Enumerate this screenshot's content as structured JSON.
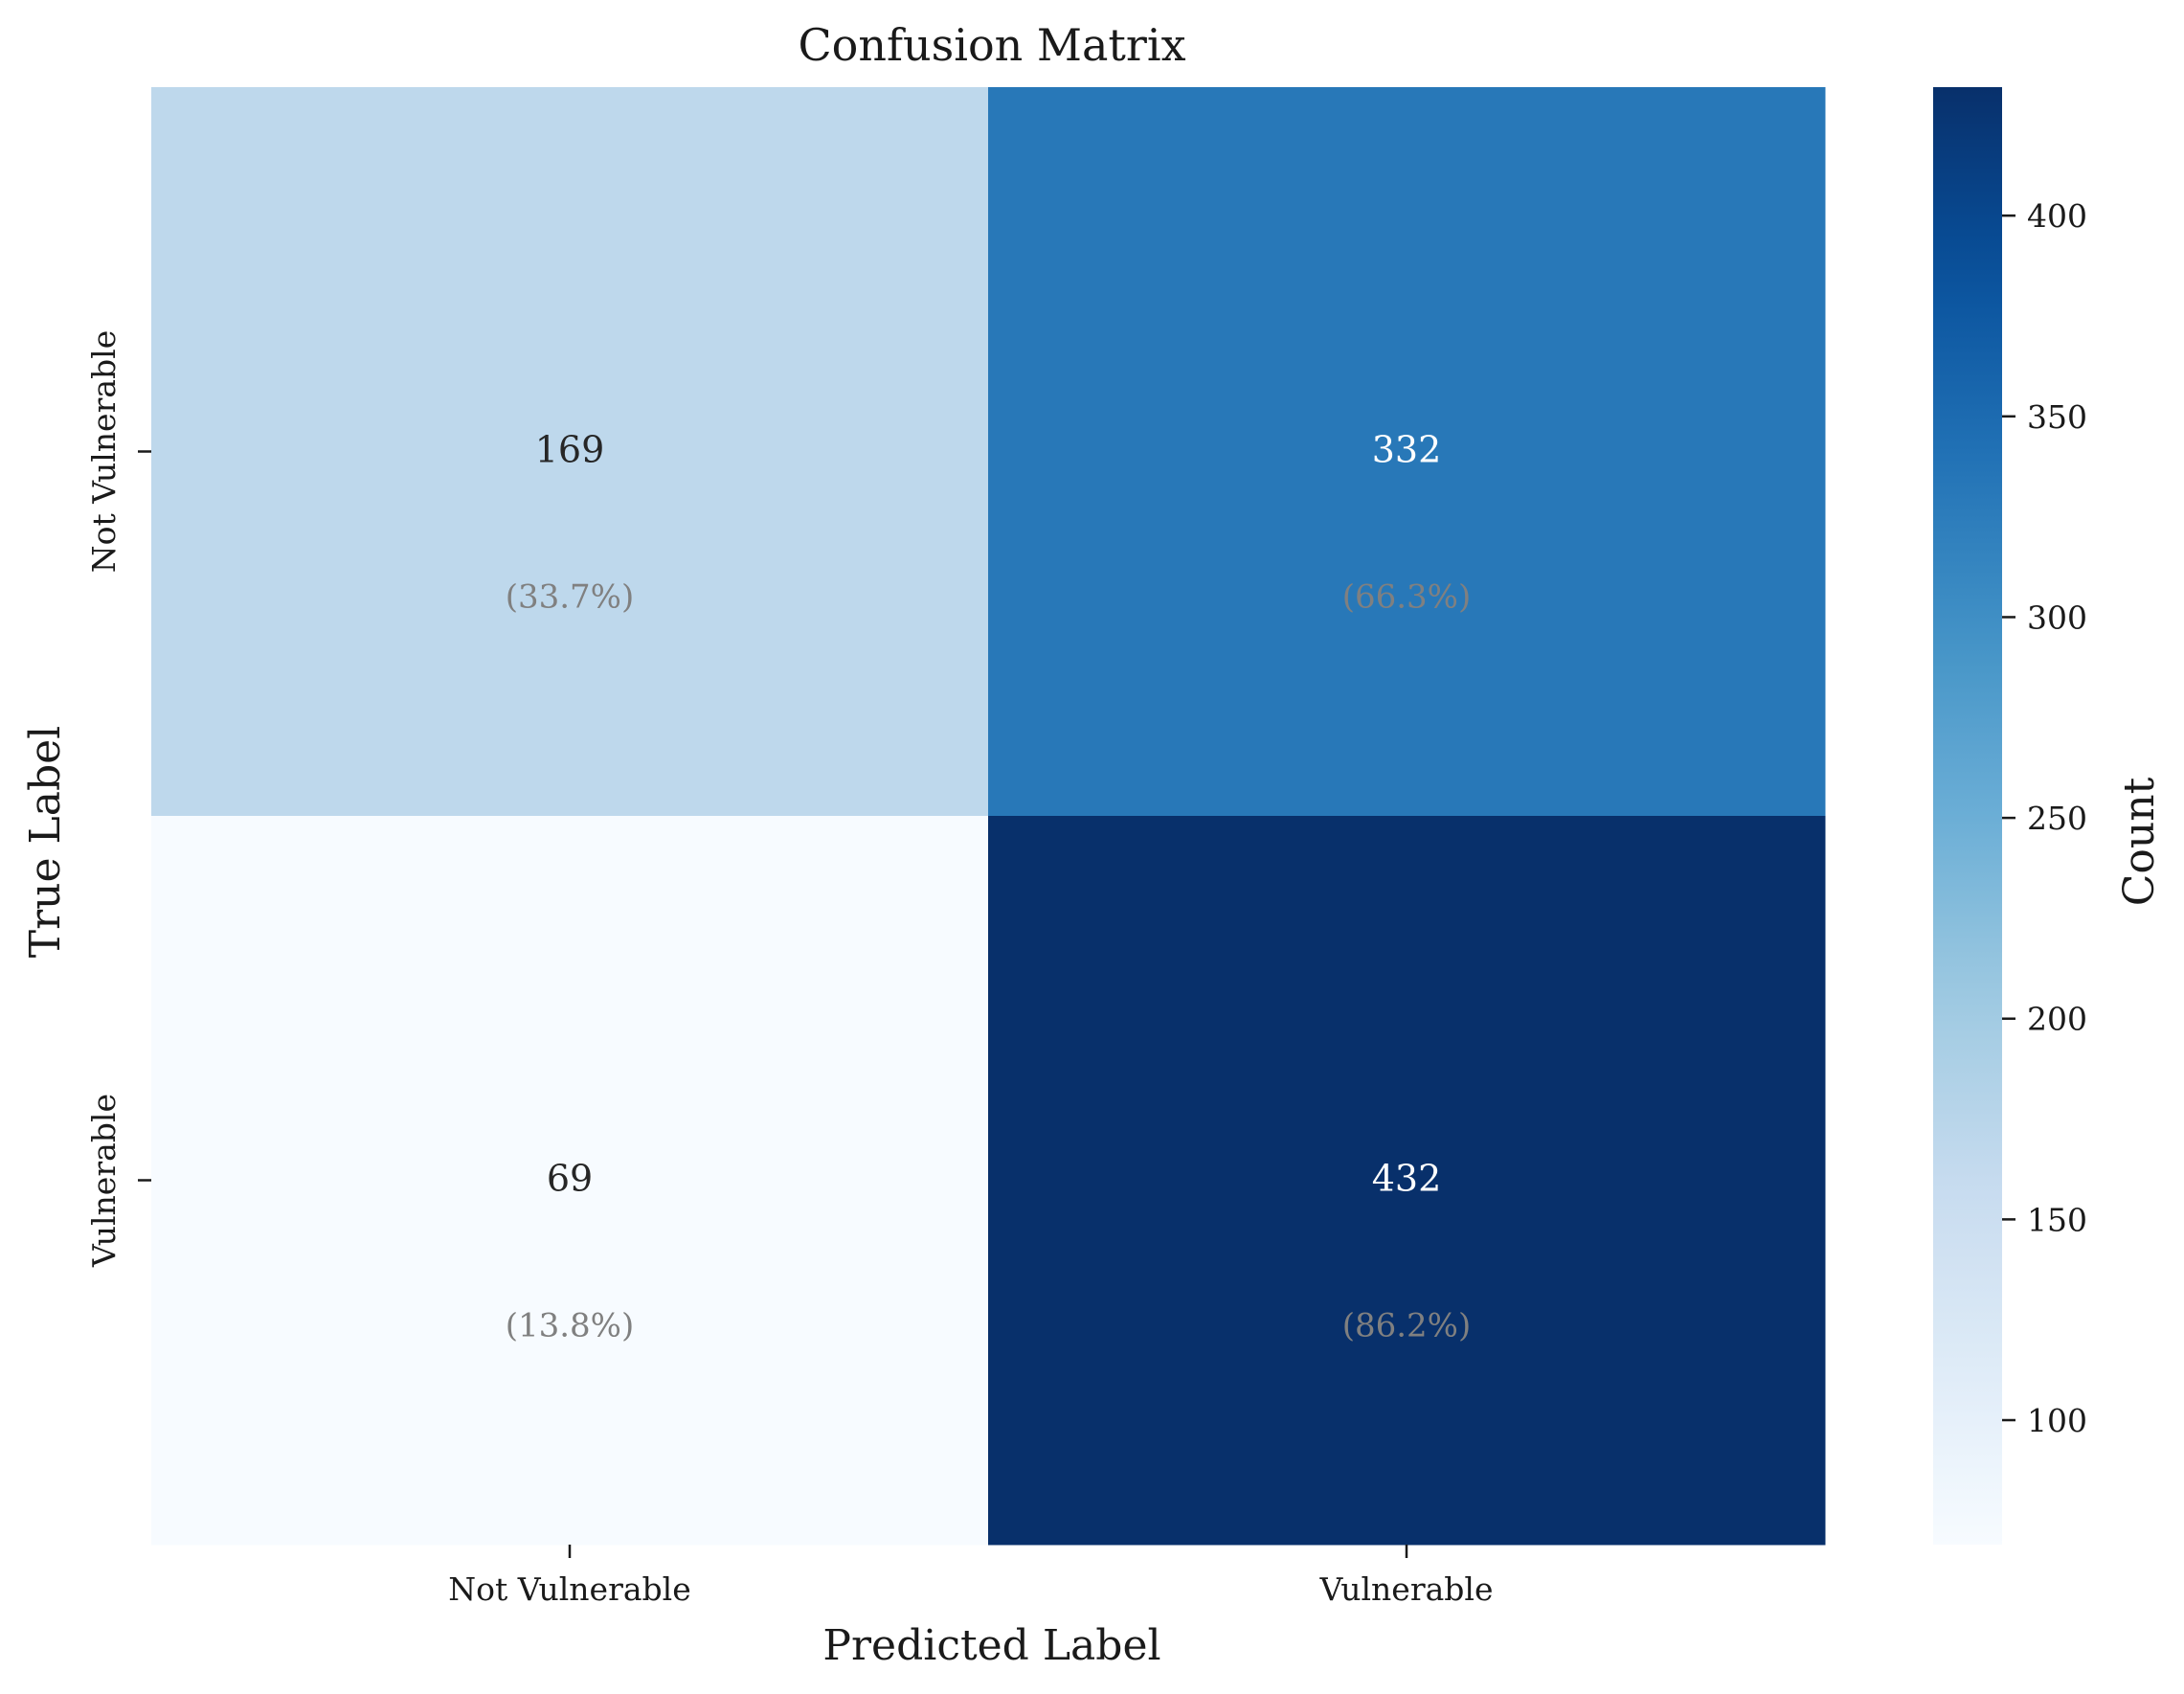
{
  "chart_data": {
    "type": "heatmap",
    "title": "Confusion Matrix",
    "xlabel": "Predicted Label",
    "ylabel": "True Label",
    "x_categories": [
      "Not Vulnerable",
      "Vulnerable"
    ],
    "y_categories": [
      "Not Vulnerable",
      "Vulnerable"
    ],
    "values": [
      [
        169,
        332
      ],
      [
        69,
        432
      ]
    ],
    "percent_labels": [
      [
        "(33.7%)",
        "(66.3%)"
      ],
      [
        "(13.8%)",
        "(86.2%)"
      ]
    ],
    "colormap": "Blues",
    "colorbar": {
      "label": "Count",
      "range": [
        69,
        432
      ],
      "ticks": [
        100,
        150,
        200,
        250,
        300,
        350,
        400
      ]
    },
    "colors": {
      "ramp": [
        "#f7fbff",
        "#deebf7",
        "#c6dbef",
        "#9ecae1",
        "#6baed6",
        "#4292c6",
        "#2171b5",
        "#08519c",
        "#08306b"
      ],
      "percent_text": "#808080",
      "dark_text": "#262626",
      "light_text": "#ffffff"
    }
  }
}
